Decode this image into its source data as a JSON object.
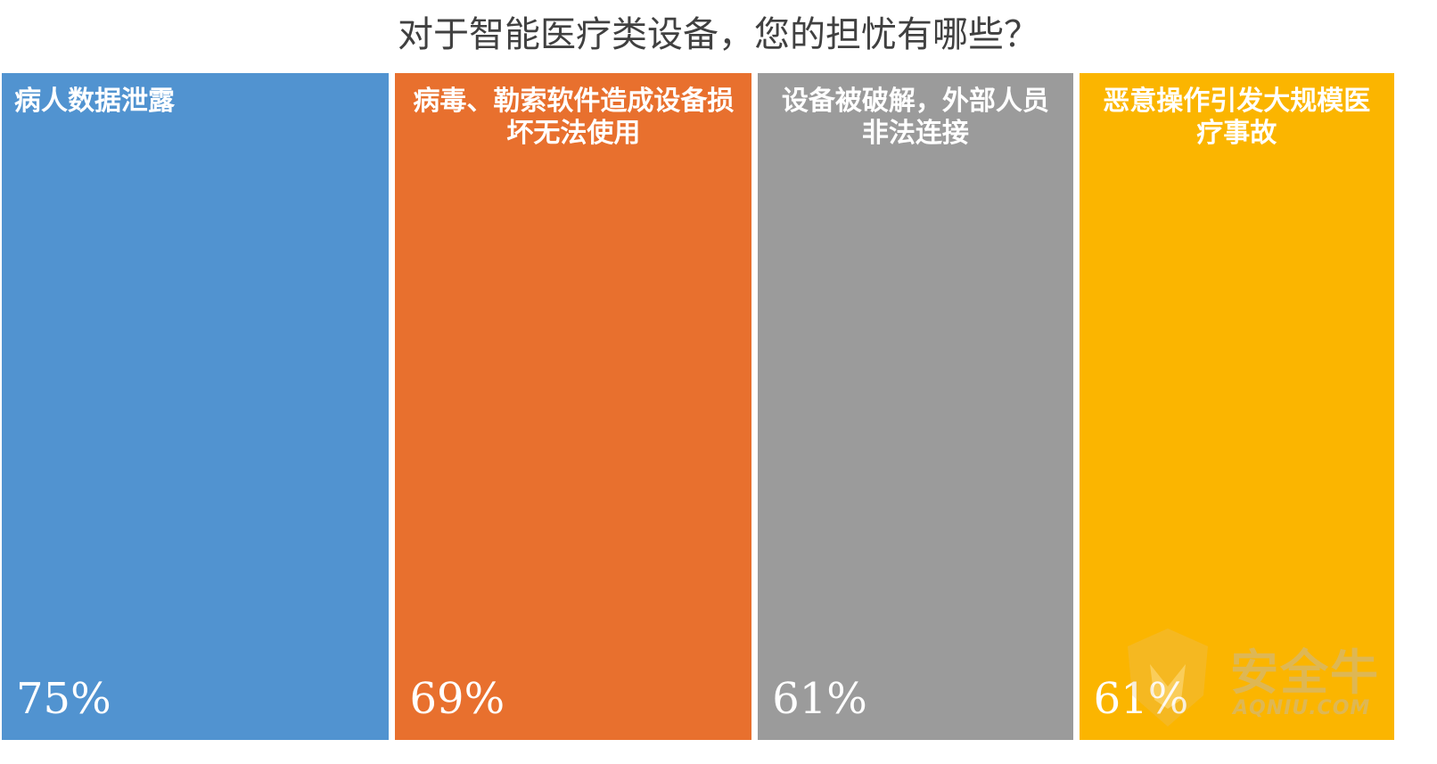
{
  "chart_data": {
    "type": "treemap",
    "title": "对于智能医疗类设备，您的担忧有哪些？",
    "categories": [
      "病人数据泄露",
      "病毒、勒索软件造成设备损坏无法使用",
      "设备被破解，外部人员非法连接",
      "恶意操作引发大规模医疗事故"
    ],
    "values": [
      75,
      69,
      61,
      61
    ],
    "value_labels": [
      "75%",
      "69%",
      "61%",
      "61%"
    ],
    "colors": [
      "#5193d0",
      "#e8702e",
      "#9b9b9b",
      "#fbb500"
    ]
  },
  "watermark": {
    "name": "安全牛",
    "url": "AQNIU.COM"
  }
}
